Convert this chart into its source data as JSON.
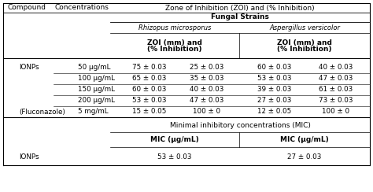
{
  "col_header": [
    "Compound",
    "Concentrations",
    "Zone of Inhibition (ZOI) and (% Inhibition)"
  ],
  "fungal_strains": "Fungal Strains",
  "species": [
    "Rhizopus microsporus",
    "Aspergillus versicolor"
  ],
  "zoi_header": [
    "ZOI (mm) and\n(% Inhibition)",
    "ZOI (mm) and\n(% Inhibition)"
  ],
  "data_rows": [
    [
      "IONPs",
      "50 μg/mL",
      "75 ± 0.03",
      "25 ± 0.03",
      "60 ± 0.03",
      "40 ± 0.03"
    ],
    [
      "",
      "100 μg/mL",
      "65 ± 0.03",
      "35 ± 0.03",
      "53 ± 0.03",
      "47 ± 0.03"
    ],
    [
      "",
      "150 μg/mL",
      "60 ± 0.03",
      "40 ± 0.03",
      "39 ± 0.03",
      "61 ± 0.03"
    ],
    [
      "",
      "200 μg/mL",
      "53 ± 0.03",
      "47 ± 0.03",
      "27 ± 0.03",
      "73 ± 0.03"
    ],
    [
      "(Fluconazole)",
      "5 mg/mL",
      "15 ± 0.05",
      "100 ± 0",
      "12 ± 0.05",
      "100 ± 0"
    ]
  ],
  "mic_label": "Minimal inhibitory concentrations (MIC)",
  "mic_headers": [
    "MIC (μg/mL)",
    "MIC (μg/mL)"
  ],
  "mic_data": [
    "IONPs",
    "53 ± 0.03",
    "27 ± 0.03"
  ],
  "bg": "#ffffff",
  "fg": "#000000"
}
